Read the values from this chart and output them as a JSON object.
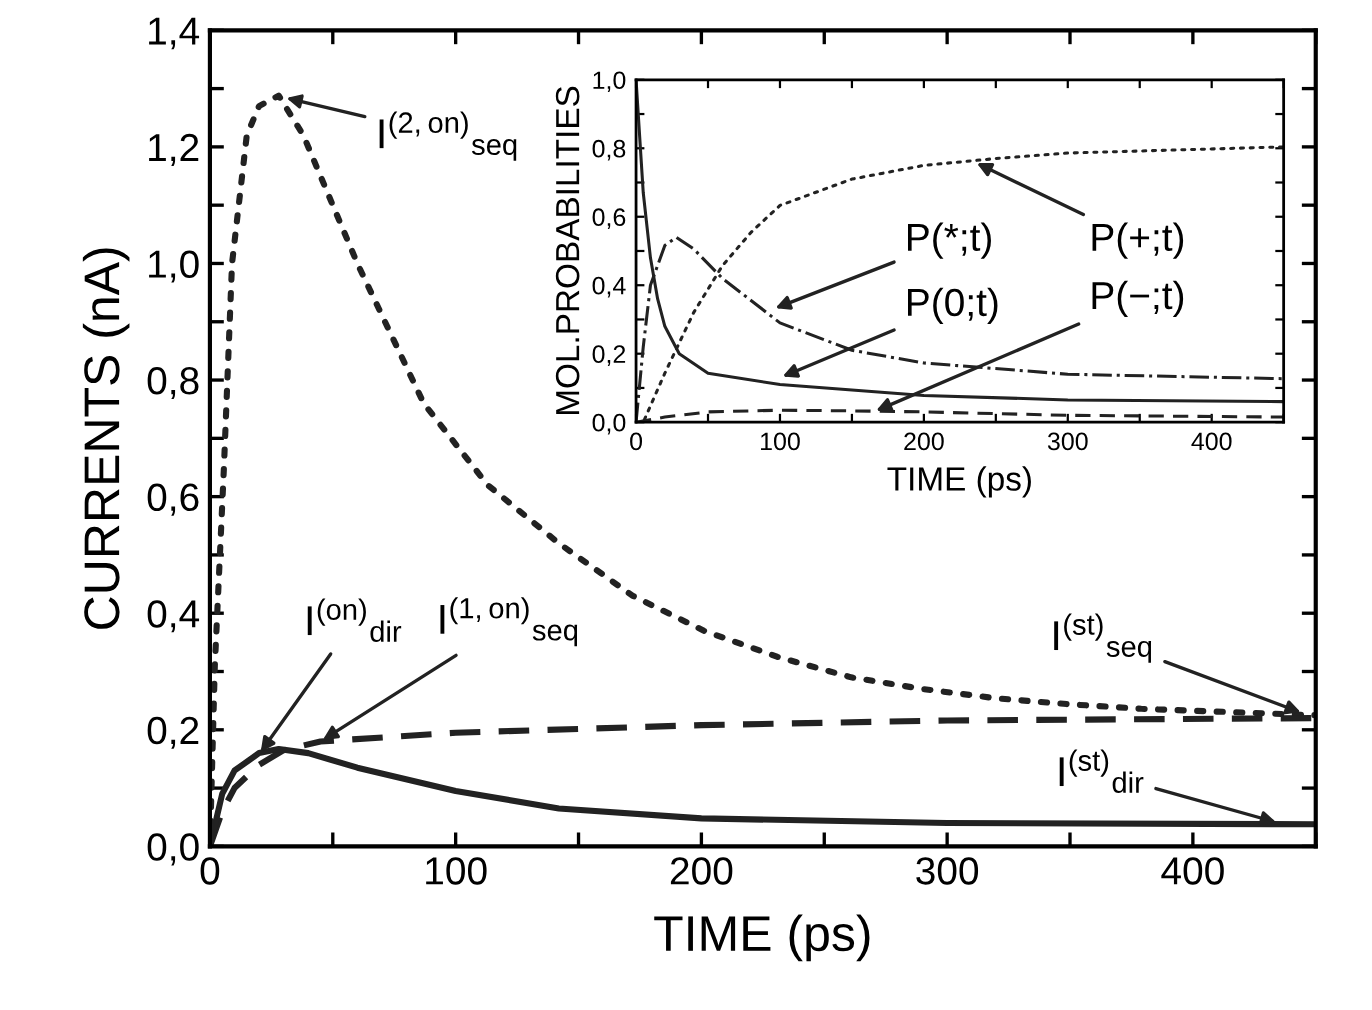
{
  "chart_data": [
    {
      "type": "line",
      "xlabel": "TIME (ps)",
      "ylabel": "CURRENTS (nA)",
      "xlim": [
        0,
        450
      ],
      "ylim": [
        0,
        1.4
      ],
      "xticks": [
        0,
        {
          "value": 50,
          "label": null
        },
        100,
        {
          "value": 150,
          "label": null
        },
        200,
        {
          "value": 250,
          "label": null
        },
        300,
        {
          "value": 350,
          "label": null
        },
        400,
        {
          "value": 450,
          "label": null
        }
      ],
      "yticks": [
        {
          "value": 0,
          "label": "0,0"
        },
        {
          "value": 0.1,
          "label": null
        },
        {
          "value": 0.2,
          "label": "0,2"
        },
        {
          "value": 0.3,
          "label": null
        },
        {
          "value": 0.4,
          "label": "0,4"
        },
        {
          "value": 0.5,
          "label": null
        },
        {
          "value": 0.6,
          "label": "0,6"
        },
        {
          "value": 0.7,
          "label": null
        },
        {
          "value": 0.8,
          "label": "0,8"
        },
        {
          "value": 0.9,
          "label": null
        },
        {
          "value": 1.0,
          "label": "1,0"
        },
        {
          "value": 1.1,
          "label": null
        },
        {
          "value": 1.2,
          "label": "1,2"
        },
        {
          "value": 1.3,
          "label": null
        },
        {
          "value": 1.4,
          "label": "1,4"
        }
      ],
      "grid": false,
      "legend": false,
      "series": [
        {
          "color": "#222222",
          "line_style": "dotted",
          "x": [
            0,
            2,
            5.7,
            9,
            15,
            20,
            28,
            38,
            60,
            87,
            113,
            142,
            172,
            201,
            231,
            261,
            290,
            320,
            349,
            379,
            450
          ],
          "values": [
            0,
            0.31,
            0.65,
            1.0,
            1.22,
            1.27,
            1.288,
            1.22,
            1.0,
            0.76,
            0.62,
            0.52,
            0.43,
            0.37,
            0.325,
            0.29,
            0.27,
            0.254,
            0.244,
            0.236,
            0.225
          ]
        },
        {
          "color": "#222222",
          "line_style": "dashed",
          "x": [
            0,
            5,
            10,
            20,
            30,
            45,
            100,
            200,
            300,
            450
          ],
          "values": [
            0,
            0.06,
            0.1,
            0.14,
            0.165,
            0.18,
            0.195,
            0.208,
            0.216,
            0.22
          ]
        },
        {
          "color": "#222222",
          "line_style": "solid",
          "x": [
            0,
            5,
            10,
            20,
            28,
            40,
            60,
            100,
            142,
            200,
            300,
            450
          ],
          "values": [
            0,
            0.09,
            0.13,
            0.16,
            0.167,
            0.16,
            0.135,
            0.095,
            0.065,
            0.048,
            0.04,
            0.038
          ]
        }
      ],
      "annotations": [
        {
          "text": "I$^{(2,on)}$$_{seq}$",
          "x": 30,
          "y": 1.285
        },
        {
          "text": "I$^{(on)}$$_{dir}$",
          "x": 20,
          "y": 0.158
        },
        {
          "text": "I$^{(1,on)}$$_{seq}$",
          "x": 45,
          "y": 0.18
        },
        {
          "text": "I$^{(st)}$$_{seq}$",
          "x": 445,
          "y": 0.228
        },
        {
          "text": "I$^{(st)}$$_{dir}$",
          "x": 435,
          "y": 0.04
        }
      ]
    },
    {
      "type": "line",
      "xlabel": "TIME (ps)",
      "ylabel": "MOL.PROBABILITIES",
      "xlim": [
        0,
        450
      ],
      "ylim": [
        0,
        1.0
      ],
      "xticks": [
        0,
        {
          "value": 50,
          "label": null
        },
        100,
        {
          "value": 150,
          "label": null
        },
        200,
        {
          "value": 250,
          "label": null
        },
        300,
        {
          "value": 350,
          "label": null
        },
        400,
        {
          "value": 450,
          "label": null
        }
      ],
      "yticks": [
        {
          "value": 0,
          "label": "0,0"
        },
        {
          "value": 0.1,
          "label": null
        },
        {
          "value": 0.2,
          "label": "0,2"
        },
        {
          "value": 0.3,
          "label": null
        },
        {
          "value": 0.4,
          "label": "0,4"
        },
        {
          "value": 0.5,
          "label": null
        },
        {
          "value": 0.6,
          "label": "0,6"
        },
        {
          "value": 0.7,
          "label": null
        },
        {
          "value": 0.8,
          "label": "0,8"
        },
        {
          "value": 0.9,
          "label": null
        },
        {
          "value": 1.0,
          "label": "1,0"
        }
      ],
      "grid": false,
      "legend": false,
      "series": [
        {
          "color": "#222222",
          "line_style": "solid",
          "x": [
            0,
            5,
            10,
            15,
            20,
            30,
            50,
            100,
            200,
            300,
            450
          ],
          "values": [
            1.0,
            0.67,
            0.48,
            0.36,
            0.28,
            0.2,
            0.143,
            0.11,
            0.078,
            0.065,
            0.06
          ]
        },
        {
          "color": "#222222",
          "line_style": "dashdot",
          "x": [
            0,
            5,
            10,
            20,
            28,
            40,
            60,
            100,
            150,
            200,
            300,
            450
          ],
          "values": [
            0,
            0.22,
            0.4,
            0.516,
            0.54,
            0.506,
            0.42,
            0.29,
            0.21,
            0.173,
            0.14,
            0.127
          ]
        },
        {
          "color": "#222222",
          "line_style": "dotted",
          "x": [
            0,
            5,
            20,
            40,
            60,
            80,
            100,
            150,
            200,
            250,
            300,
            450
          ],
          "values": [
            0,
            0,
            0.143,
            0.32,
            0.457,
            0.555,
            0.633,
            0.71,
            0.75,
            0.77,
            0.786,
            0.804
          ]
        },
        {
          "color": "#222222",
          "line_style": "dashed",
          "x": [
            0,
            20,
            50,
            100,
            150,
            200,
            300,
            450
          ],
          "values": [
            0,
            0.015,
            0.03,
            0.035,
            0.033,
            0.03,
            0.02,
            0.015
          ]
        }
      ],
      "annotations": [
        {
          "text": "P(*;t)",
          "x": 95,
          "y": 0.33
        },
        {
          "text": "P(0;t)",
          "x": 100,
          "y": 0.13
        },
        {
          "text": "P(+;t)",
          "x": 235,
          "y": 0.76
        },
        {
          "text": "P(−;t)",
          "x": 165,
          "y": 0.03
        }
      ]
    }
  ]
}
